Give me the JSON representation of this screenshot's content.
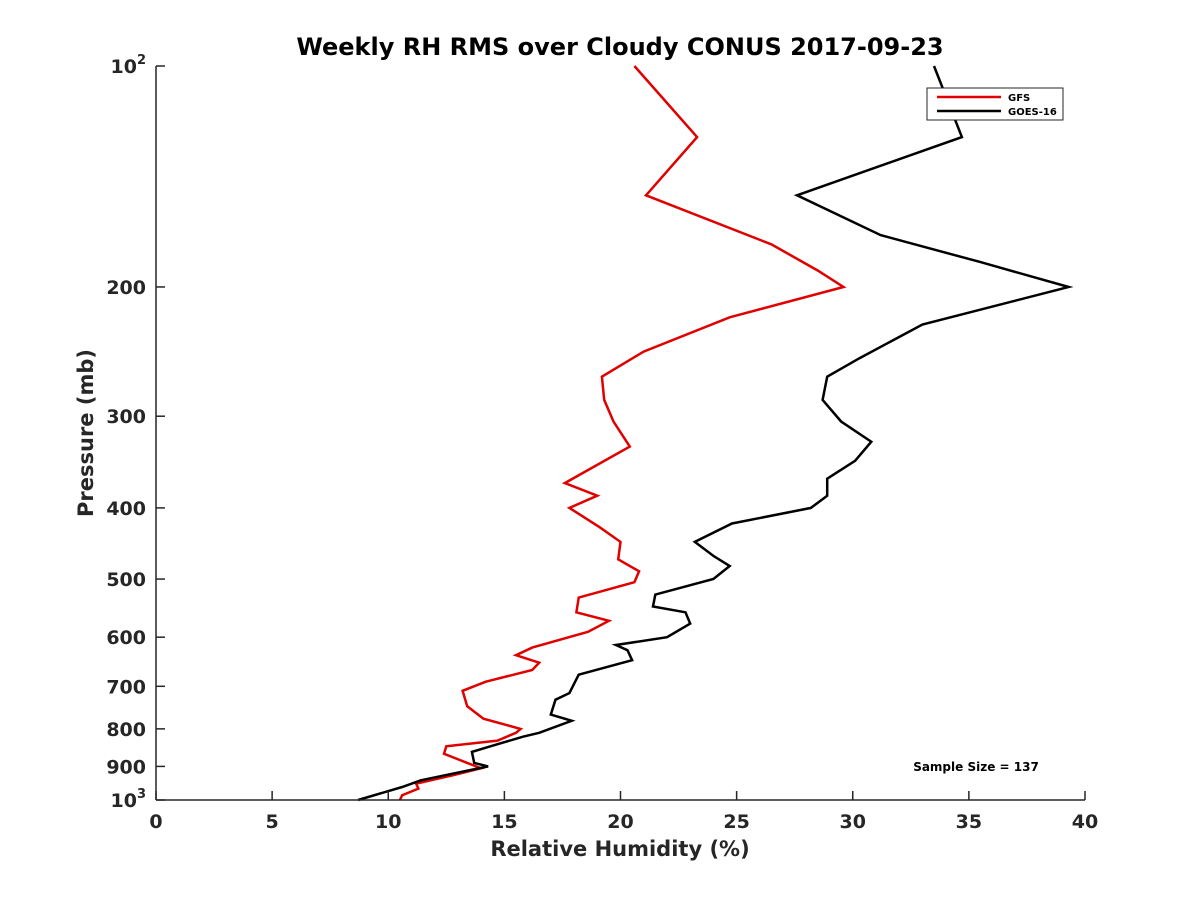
{
  "chart_data": {
    "type": "line",
    "title": "Weekly RH RMS over Cloudy CONUS 2017-09-23",
    "xlabel": "Relative Humidity (%)",
    "ylabel": "Pressure (mb)",
    "xlim": [
      0,
      40
    ],
    "ylim": [
      100,
      1000
    ],
    "y_scale": "log",
    "y_reversed": true,
    "grid": false,
    "legend_position": "top-right",
    "x_ticks": [
      "0",
      "5",
      "10",
      "15",
      "20",
      "25",
      "30",
      "35",
      "40"
    ],
    "y_ticks": [
      {
        "value": 100,
        "label": "10",
        "exp": "2"
      },
      {
        "value": 200,
        "label": "200"
      },
      {
        "value": 300,
        "label": "300"
      },
      {
        "value": 400,
        "label": "400"
      },
      {
        "value": 500,
        "label": "500"
      },
      {
        "value": 600,
        "label": "600"
      },
      {
        "value": 700,
        "label": "700"
      },
      {
        "value": 800,
        "label": "800"
      },
      {
        "value": 900,
        "label": "900"
      },
      {
        "value": 1000,
        "label": "10",
        "exp": "3"
      }
    ],
    "annotation": "Sample Size = 137",
    "series": [
      {
        "name": "GFS",
        "color": "#e00000",
        "points": [
          [
            20.6,
            100
          ],
          [
            23.3,
            125
          ],
          [
            21.1,
            150
          ],
          [
            26.5,
            175
          ],
          [
            28.5,
            190
          ],
          [
            29.6,
            200
          ],
          [
            24.7,
            220
          ],
          [
            21.0,
            245
          ],
          [
            19.2,
            265
          ],
          [
            19.3,
            285
          ],
          [
            19.7,
            305
          ],
          [
            20.4,
            330
          ],
          [
            17.6,
            370
          ],
          [
            19.0,
            385
          ],
          [
            17.8,
            400
          ],
          [
            19.1,
            425
          ],
          [
            20.0,
            445
          ],
          [
            19.9,
            470
          ],
          [
            20.8,
            488
          ],
          [
            20.6,
            505
          ],
          [
            18.2,
            530
          ],
          [
            18.1,
            555
          ],
          [
            19.5,
            570
          ],
          [
            18.6,
            590
          ],
          [
            16.2,
            620
          ],
          [
            15.5,
            635
          ],
          [
            16.5,
            650
          ],
          [
            16.2,
            665
          ],
          [
            14.2,
            690
          ],
          [
            13.2,
            710
          ],
          [
            13.4,
            745
          ],
          [
            14.1,
            775
          ],
          [
            15.7,
            800
          ],
          [
            15.5,
            810
          ],
          [
            14.7,
            830
          ],
          [
            12.5,
            845
          ],
          [
            12.4,
            865
          ],
          [
            13.4,
            890
          ],
          [
            14.0,
            905
          ],
          [
            12.8,
            925
          ],
          [
            11.2,
            950
          ],
          [
            11.3,
            965
          ],
          [
            10.6,
            985
          ],
          [
            10.5,
            1000
          ]
        ]
      },
      {
        "name": "GOES-16",
        "color": "#000000",
        "points": [
          [
            33.5,
            100
          ],
          [
            34.7,
            125
          ],
          [
            27.6,
            150
          ],
          [
            31.2,
            170
          ],
          [
            35.5,
            185
          ],
          [
            39.3,
            200
          ],
          [
            33.0,
            225
          ],
          [
            30.3,
            250
          ],
          [
            28.9,
            265
          ],
          [
            28.7,
            285
          ],
          [
            29.5,
            305
          ],
          [
            30.8,
            325
          ],
          [
            30.1,
            345
          ],
          [
            28.9,
            365
          ],
          [
            28.9,
            385
          ],
          [
            28.2,
            400
          ],
          [
            24.8,
            420
          ],
          [
            23.2,
            445
          ],
          [
            24.0,
            465
          ],
          [
            24.7,
            480
          ],
          [
            24.0,
            500
          ],
          [
            21.5,
            525
          ],
          [
            21.4,
            545
          ],
          [
            22.8,
            555
          ],
          [
            23.0,
            575
          ],
          [
            22.0,
            600
          ],
          [
            19.8,
            615
          ],
          [
            20.3,
            625
          ],
          [
            20.5,
            645
          ],
          [
            18.2,
            675
          ],
          [
            17.8,
            715
          ],
          [
            17.2,
            730
          ],
          [
            17.0,
            765
          ],
          [
            17.9,
            780
          ],
          [
            16.5,
            810
          ],
          [
            15.8,
            820
          ],
          [
            14.4,
            845
          ],
          [
            13.6,
            860
          ],
          [
            13.7,
            890
          ],
          [
            14.3,
            900
          ],
          [
            11.4,
            940
          ],
          [
            10.6,
            960
          ],
          [
            8.7,
            1000
          ]
        ]
      }
    ]
  }
}
